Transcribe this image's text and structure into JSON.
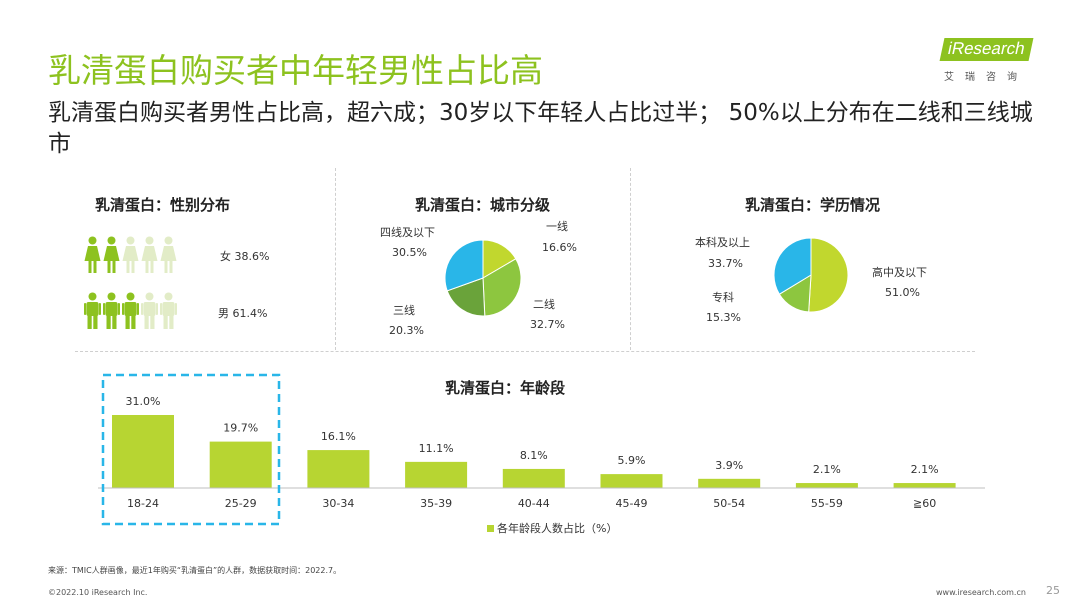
{
  "title": "乳清蛋白购买者中年轻男性占比高",
  "subtitle": "乳清蛋白购买者男性占比高，超六成；30岁以下年轻人占比过半； 50%以上分布在二线和三线城市",
  "logo": {
    "word": "iResearch",
    "sub": "艾瑞咨询"
  },
  "colors": {
    "accent": "#8dc21f",
    "icon_light": "#e2ecc7",
    "pie_1": "#c1d72e",
    "pie_2": "#8dc63f",
    "pie_3": "#6aa33a",
    "pie_4": "#29b6e8",
    "dash_box": "#29b6e8"
  },
  "gender": {
    "title": "乳清蛋白：性别分布",
    "female_label": "女 38.6%",
    "male_label": "男 61.4%",
    "female_filled_of_5": 2,
    "male_filled_of_5": 3,
    "female_icon": "female-person-icon",
    "male_icon": "male-person-icon"
  },
  "city": {
    "title": "乳清蛋白：城市分级",
    "labels": {
      "tier1_name": "一线",
      "tier1_value": "16.6%",
      "tier2_name": "二线",
      "tier2_value": "32.7%",
      "tier3_name": "三线",
      "tier3_value": "20.3%",
      "tier4_name": "四线及以下",
      "tier4_value": "30.5%"
    }
  },
  "education": {
    "title": "乳清蛋白：学历情况",
    "labels": {
      "hs_name": "高中及以下",
      "hs_value": "51.0%",
      "col_name": "专科",
      "col_value": "15.3%",
      "bach_name": "本科及以上",
      "bach_value": "33.7%"
    }
  },
  "age": {
    "title": "乳清蛋白：年龄段",
    "legend": "各年龄段人数占比（%）"
  },
  "chart_data": [
    {
      "type": "pie",
      "title": "乳清蛋白：城市分级",
      "categories": [
        "一线",
        "二线",
        "三线",
        "四线及以下"
      ],
      "values": [
        16.6,
        32.7,
        20.3,
        30.5
      ]
    },
    {
      "type": "pie",
      "title": "乳清蛋白：学历情况",
      "categories": [
        "高中及以下",
        "专科",
        "本科及以上"
      ],
      "values": [
        51.0,
        15.3,
        33.7
      ]
    },
    {
      "type": "bar",
      "title": "乳清蛋白：年龄段",
      "categories": [
        "18-24",
        "25-29",
        "30-34",
        "35-39",
        "40-44",
        "45-49",
        "50-54",
        "55-59",
        "≧60"
      ],
      "series": [
        {
          "name": "各年龄段人数占比（%）",
          "values": [
            31.0,
            19.7,
            16.1,
            11.1,
            8.1,
            5.9,
            3.9,
            2.1,
            2.1
          ]
        }
      ],
      "value_labels": [
        "31.0%",
        "19.7%",
        "16.1%",
        "11.1%",
        "8.1%",
        "5.9%",
        "3.9%",
        "2.1%",
        "2.1%"
      ],
      "highlighted_categories": [
        "18-24",
        "25-29"
      ]
    }
  ],
  "footer": {
    "note": "来源：TMIC人群画像，最近1年购买“乳清蛋白”的人群，数据获取时间：2022.7。",
    "copyright": "©2022.10 iResearch Inc.",
    "site": "www.iresearch.com.cn",
    "page": "25"
  }
}
